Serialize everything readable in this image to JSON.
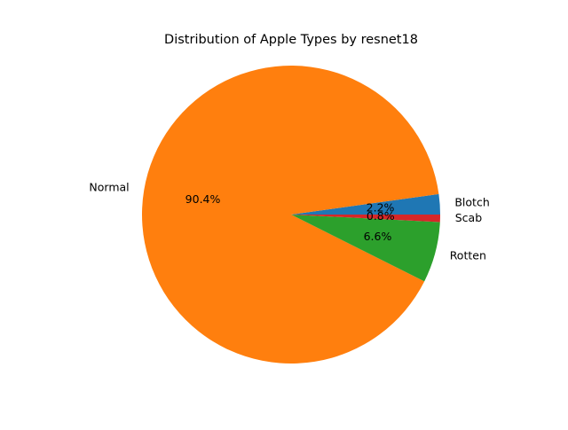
{
  "chart_data": {
    "type": "pie",
    "title": "Distribution of Apple Types by resnet18",
    "slices": [
      {
        "label": "Blotch",
        "value": 2.2,
        "pct_label": "2.2%",
        "color": "#1f77b4"
      },
      {
        "label": "Normal",
        "value": 90.4,
        "pct_label": "90.4%",
        "color": "#ff7f0e"
      },
      {
        "label": "Rotten",
        "value": 6.6,
        "pct_label": "6.6%",
        "color": "#2ca02c"
      },
      {
        "label": "Scab",
        "value": 0.8,
        "pct_label": "0.8%",
        "color": "#d62728"
      }
    ],
    "start_angle_deg": 0,
    "direction": "counterclockwise",
    "legend": "none"
  }
}
